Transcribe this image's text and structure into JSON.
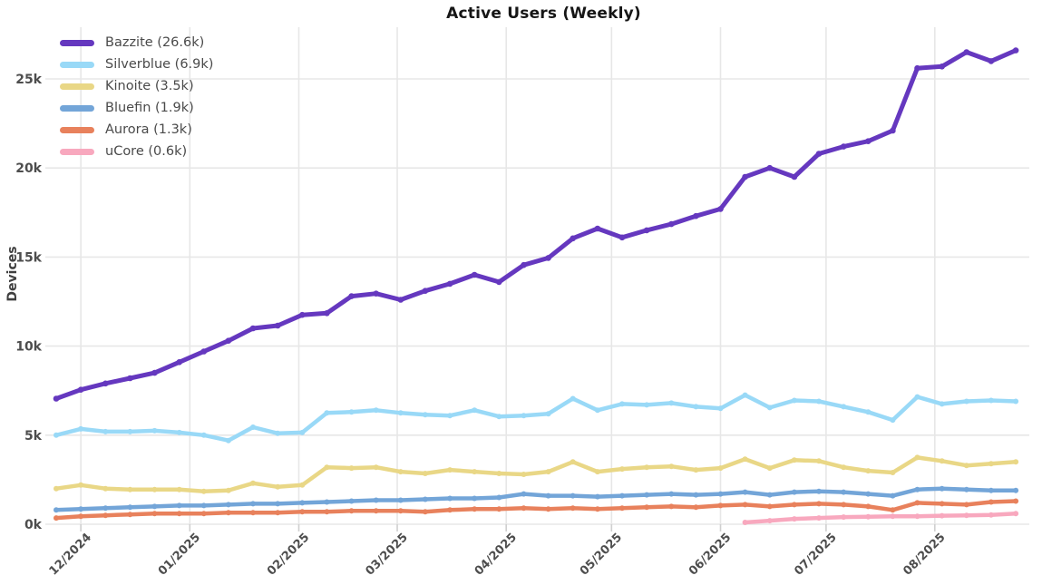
{
  "theme": {
    "background": "#ffffff",
    "grid_color": "#e7e7e7",
    "tick_color": "#cfcfcf",
    "title_color": "#161616",
    "axis_text_color": "#4d4d4d",
    "legend_text_color": "#4a4a4a"
  },
  "chart_data": {
    "type": "line",
    "title": "Active Users (Weekly)",
    "ylabel": "Devices",
    "xlabel": "",
    "x_unit": "weekly data points, late Nov 2024 through mid Aug 2025",
    "n_points": 40,
    "grid": true,
    "legend_position": "top-left",
    "ylim_k": [
      0,
      27.9
    ],
    "y_ticks": [
      {
        "label": "0k",
        "value_k": 0
      },
      {
        "label": "5k",
        "value_k": 5
      },
      {
        "label": "10k",
        "value_k": 10
      },
      {
        "label": "15k",
        "value_k": 15
      },
      {
        "label": "20k",
        "value_k": 20
      },
      {
        "label": "25k",
        "value_k": 25
      }
    ],
    "month_ticks": [
      {
        "label": "12/2024",
        "week_pos": 1.0
      },
      {
        "label": "01/2025",
        "week_pos": 5.43
      },
      {
        "label": "02/2025",
        "week_pos": 9.86
      },
      {
        "label": "03/2025",
        "week_pos": 13.86
      },
      {
        "label": "04/2025",
        "week_pos": 18.29
      },
      {
        "label": "05/2025",
        "week_pos": 22.57
      },
      {
        "label": "06/2025",
        "week_pos": 27.0
      },
      {
        "label": "07/2025",
        "week_pos": 31.29
      },
      {
        "label": "08/2025",
        "week_pos": 35.71
      }
    ],
    "series": [
      {
        "name": "Bazzite",
        "legend_label": "Bazzite (26.6k)",
        "latest_k": 26.6,
        "color": "#6538bf",
        "line_width": 5,
        "values_k": [
          7.05,
          7.55,
          7.9,
          8.2,
          8.5,
          9.1,
          9.7,
          10.3,
          11.0,
          11.15,
          11.75,
          11.85,
          12.8,
          12.95,
          12.6,
          13.1,
          13.5,
          14.0,
          13.6,
          14.55,
          14.95,
          16.05,
          16.6,
          16.1,
          16.5,
          16.85,
          17.3,
          17.7,
          19.5,
          20.0,
          19.5,
          20.8,
          21.2,
          21.5,
          22.1,
          25.6,
          25.7,
          26.5,
          26.0,
          26.6
        ]
      },
      {
        "name": "Silverblue",
        "legend_label": "Silverblue (6.9k)",
        "latest_k": 6.9,
        "color": "#99d9f7",
        "line_width": 4.5,
        "values_k": [
          5.0,
          5.35,
          5.2,
          5.2,
          5.25,
          5.15,
          5.0,
          4.7,
          5.45,
          5.1,
          5.15,
          6.25,
          6.3,
          6.4,
          6.25,
          6.15,
          6.1,
          6.4,
          6.05,
          6.1,
          6.2,
          7.05,
          6.4,
          6.75,
          6.7,
          6.8,
          6.6,
          6.5,
          7.25,
          6.55,
          6.95,
          6.9,
          6.6,
          6.3,
          5.85,
          7.15,
          6.75,
          6.9,
          6.95,
          6.9
        ]
      },
      {
        "name": "Kinoite",
        "legend_label": "Kinoite (3.5k)",
        "latest_k": 3.5,
        "color": "#e9d786",
        "line_width": 4.5,
        "values_k": [
          2.0,
          2.2,
          2.0,
          1.95,
          1.95,
          1.95,
          1.85,
          1.9,
          2.3,
          2.1,
          2.2,
          3.2,
          3.15,
          3.2,
          2.95,
          2.85,
          3.05,
          2.95,
          2.85,
          2.8,
          2.95,
          3.5,
          2.95,
          3.1,
          3.2,
          3.25,
          3.05,
          3.15,
          3.65,
          3.15,
          3.6,
          3.55,
          3.2,
          3.0,
          2.9,
          3.75,
          3.55,
          3.3,
          3.4,
          3.5
        ]
      },
      {
        "name": "Bluefin",
        "legend_label": "Bluefin (1.9k)",
        "latest_k": 1.9,
        "color": "#73a5d8",
        "line_width": 4.5,
        "values_k": [
          0.8,
          0.85,
          0.9,
          0.95,
          1.0,
          1.05,
          1.05,
          1.1,
          1.15,
          1.15,
          1.2,
          1.25,
          1.3,
          1.35,
          1.35,
          1.4,
          1.45,
          1.45,
          1.5,
          1.7,
          1.6,
          1.6,
          1.55,
          1.6,
          1.65,
          1.7,
          1.65,
          1.7,
          1.8,
          1.65,
          1.8,
          1.85,
          1.8,
          1.7,
          1.6,
          1.95,
          2.0,
          1.95,
          1.9,
          1.9
        ]
      },
      {
        "name": "Aurora",
        "legend_label": "Aurora (1.3k)",
        "latest_k": 1.3,
        "color": "#e8815c",
        "line_width": 4.5,
        "values_k": [
          0.35,
          0.45,
          0.5,
          0.55,
          0.6,
          0.6,
          0.6,
          0.65,
          0.65,
          0.65,
          0.7,
          0.7,
          0.75,
          0.75,
          0.75,
          0.7,
          0.8,
          0.85,
          0.85,
          0.9,
          0.85,
          0.9,
          0.85,
          0.9,
          0.95,
          1.0,
          0.95,
          1.05,
          1.1,
          1.0,
          1.1,
          1.15,
          1.1,
          1.0,
          0.8,
          1.2,
          1.15,
          1.1,
          1.25,
          1.3
        ]
      },
      {
        "name": "uCore",
        "legend_label": "uCore (0.6k)",
        "latest_k": 0.6,
        "color": "#f8a8be",
        "line_width": 4.5,
        "values_k": [
          null,
          null,
          null,
          null,
          null,
          null,
          null,
          null,
          null,
          null,
          null,
          null,
          null,
          null,
          null,
          null,
          null,
          null,
          null,
          null,
          null,
          null,
          null,
          null,
          null,
          null,
          null,
          null,
          0.1,
          0.2,
          0.3,
          0.35,
          0.4,
          0.42,
          0.45,
          0.45,
          0.48,
          0.5,
          0.52,
          0.6
        ]
      }
    ]
  }
}
